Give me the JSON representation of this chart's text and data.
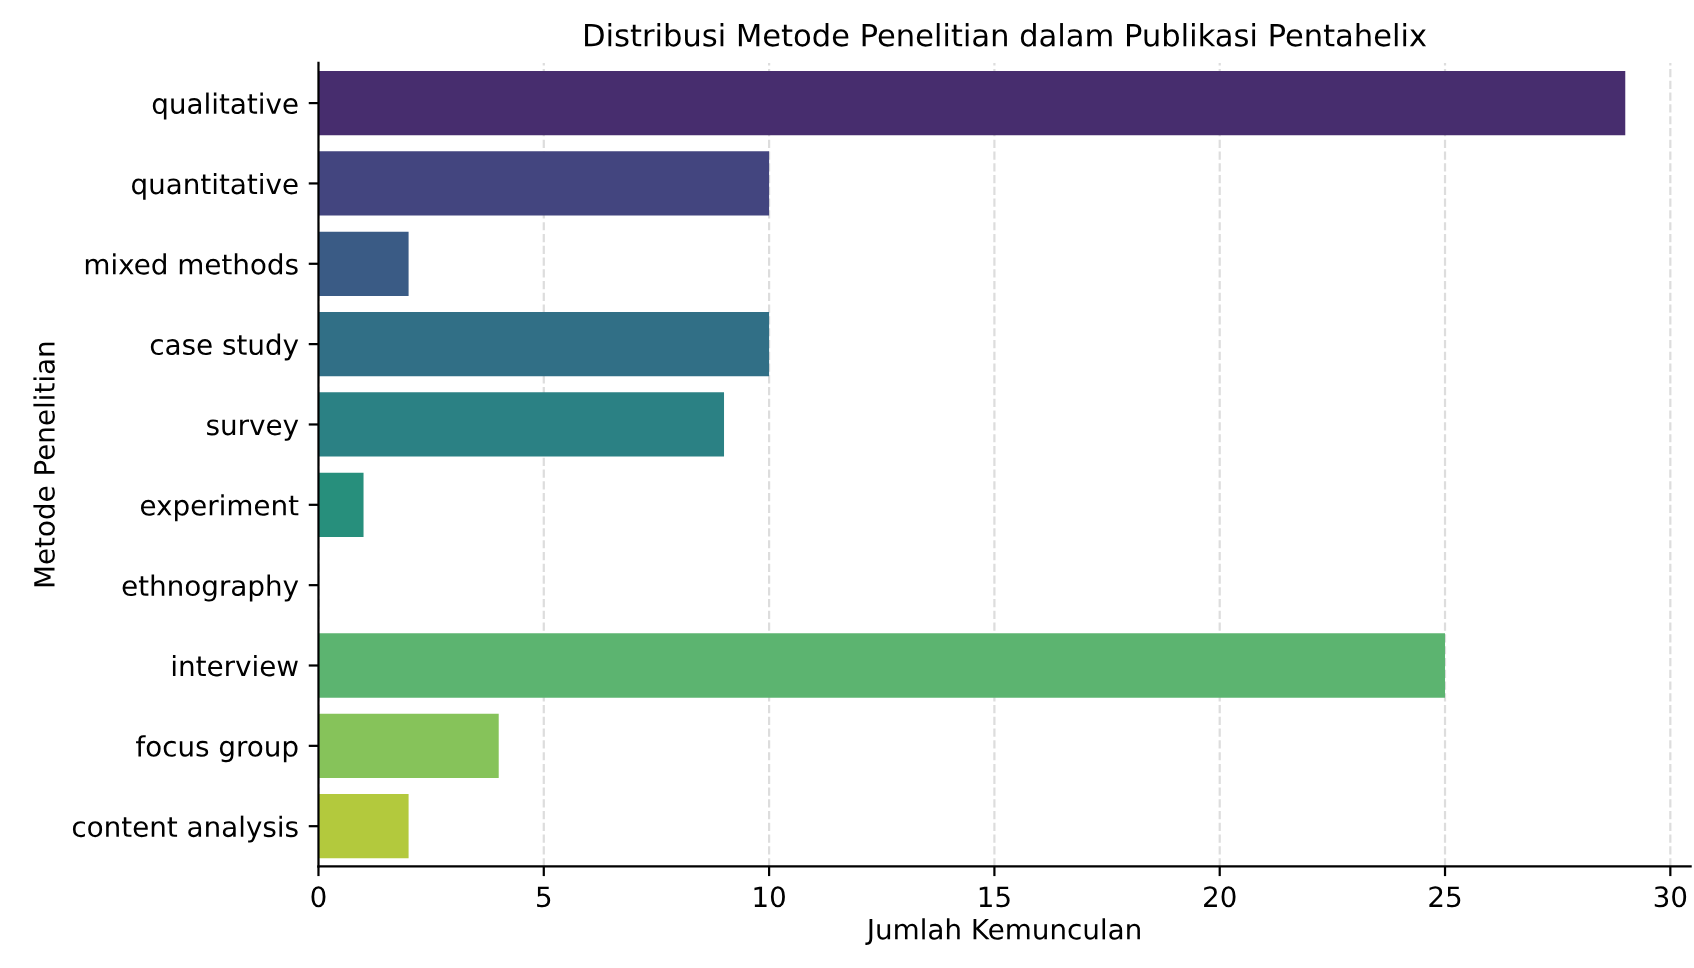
{
  "chart_data": {
    "type": "bar",
    "orientation": "horizontal",
    "title": "Distribusi Metode Penelitian dalam Publikasi Pentahelix",
    "xlabel": "Jumlah Kemunculan",
    "ylabel": "Metode Penelitian",
    "categories": [
      "qualitative",
      "quantitative",
      "mixed methods",
      "case study",
      "survey",
      "experiment",
      "ethnography",
      "interview",
      "focus group",
      "content analysis"
    ],
    "values": [
      29,
      10,
      2,
      10,
      9,
      1,
      0,
      25,
      4,
      2
    ],
    "colors": [
      "#472d6e",
      "#43457f",
      "#3a5b85",
      "#316f86",
      "#2b8184",
      "#278f7c",
      "#2fa07a",
      "#5cb470",
      "#86c35a",
      "#b3c93d"
    ],
    "xlim": [
      0,
      30.45
    ],
    "xticks": [
      0,
      5,
      10,
      15,
      20,
      25,
      30
    ],
    "grid": "x"
  }
}
